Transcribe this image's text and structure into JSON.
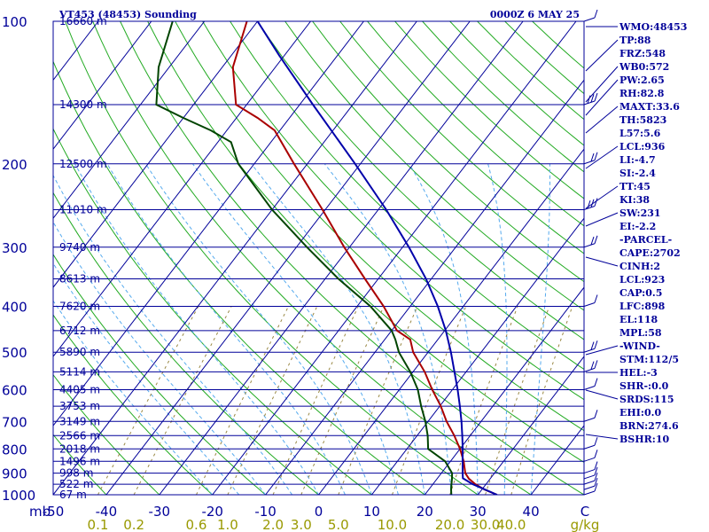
{
  "header": {
    "station": "VT453 (48453) Sounding",
    "time": "0000Z  6 MAY 25"
  },
  "colors": {
    "axis": "#000099",
    "isobar": "#000099",
    "isotherm": "#000099",
    "dry_adiabat": "#22aa22",
    "moist_adiabat": "#55aaee",
    "mixing_ratio": "#998844",
    "temperature": "#aa0000",
    "dewpoint": "#004400",
    "parcel": "#0000aa",
    "wind": "#000099",
    "mix_label": "#999900"
  },
  "indices": [
    "WMO:48453",
    "TP:88",
    "FRZ:548",
    "WB0:572",
    "PW:2.65",
    "RH:82.8",
    "MAXT:33.6",
    "TH:5823",
    "L57:5.6",
    "LCL:936",
    "LI:-4.7",
    "SI:-2.4",
    "TT:45",
    "KI:38",
    "SW:231",
    "EI:-2.2",
    "-PARCEL-",
    "CAPE:2702",
    "CINH:2",
    "LCL:923",
    "CAP:0.5",
    "LFC:898",
    "EL:118",
    "MPL:58",
    "-WIND-",
    "STM:112/5",
    "HEL:-3",
    "SHR-:0.0",
    "SRDS:115",
    "EHI:0.0",
    "BRN:274.6",
    "BSHR:10"
  ],
  "x_axis": {
    "unit_mb": "mb",
    "unit_c": "C",
    "temp_ticks": [
      "-50",
      "-40",
      "-30",
      "-20",
      "-10",
      "0",
      "10",
      "20",
      "30",
      "40"
    ],
    "mixing_ratio_unit": "g/kg",
    "mixing_ratio_ticks": [
      "0.1",
      "0.2",
      "0.6",
      "1.0",
      "2.0",
      "3.0",
      "5.0",
      "10.0",
      "20.0",
      "30.0",
      "40.0"
    ]
  },
  "chart_data": {
    "type": "line",
    "title": "VT453 (48453) Sounding",
    "subtitle": "0000Z  6 MAY 25",
    "x_label": "C",
    "y_label": "mb",
    "xlim": [
      -50,
      50
    ],
    "ylim": [
      1000,
      100
    ],
    "y_scale": "log",
    "pressure_ticks": [
      100,
      200,
      300,
      400,
      500,
      600,
      700,
      800,
      900,
      1000
    ],
    "heights": [
      {
        "p": 100,
        "label": "16660 m"
      },
      {
        "p": 150,
        "label": "14300 m"
      },
      {
        "p": 200,
        "label": "12500 m"
      },
      {
        "p": 250,
        "label": "11010 m"
      },
      {
        "p": 300,
        "label": "9740 m"
      },
      {
        "p": 350,
        "label": "8613 m"
      },
      {
        "p": 400,
        "label": "7620 m"
      },
      {
        "p": 450,
        "label": "6712 m"
      },
      {
        "p": 500,
        "label": "5890 m"
      },
      {
        "p": 550,
        "label": "5114 m"
      },
      {
        "p": 600,
        "label": "4405 m"
      },
      {
        "p": 650,
        "label": "3753 m"
      },
      {
        "p": 700,
        "label": "3149 m"
      },
      {
        "p": 750,
        "label": "2566 m"
      },
      {
        "p": 800,
        "label": "2018 m"
      },
      {
        "p": 850,
        "label": "1496 m"
      },
      {
        "p": 900,
        "label": "998 m"
      },
      {
        "p": 950,
        "label": "522 m"
      },
      {
        "p": 1000,
        "label": "67 m"
      }
    ],
    "mixing_ratio_values": [
      0.1,
      0.2,
      0.6,
      1.0,
      2.0,
      3.0,
      5.0,
      10.0,
      20.0,
      30.0,
      40.0
    ],
    "series": [
      {
        "name": "temperature",
        "points": [
          [
            1000,
            33.6
          ],
          [
            975,
            30.5
          ],
          [
            950,
            28.0
          ],
          [
            925,
            26.0
          ],
          [
            900,
            24.5
          ],
          [
            850,
            22.5
          ],
          [
            800,
            20.0
          ],
          [
            750,
            17.0
          ],
          [
            700,
            13.5
          ],
          [
            650,
            10.2
          ],
          [
            600,
            6.2
          ],
          [
            550,
            2.2
          ],
          [
            500,
            -2.8
          ],
          [
            470,
            -5.2
          ],
          [
            450,
            -9.0
          ],
          [
            400,
            -15.0
          ],
          [
            350,
            -22.5
          ],
          [
            300,
            -31.0
          ],
          [
            250,
            -40.5
          ],
          [
            200,
            -52.5
          ],
          [
            170,
            -61.0
          ],
          [
            160,
            -66.0
          ],
          [
            150,
            -72.0
          ],
          [
            125,
            -78.0
          ],
          [
            100,
            -82.0
          ]
        ]
      },
      {
        "name": "dewpoint",
        "points": [
          [
            1000,
            25.0
          ],
          [
            975,
            24.2
          ],
          [
            950,
            23.5
          ],
          [
            925,
            22.8
          ],
          [
            900,
            22.0
          ],
          [
            850,
            19.0
          ],
          [
            800,
            14.0
          ],
          [
            750,
            12.0
          ],
          [
            700,
            9.5
          ],
          [
            650,
            6.5
          ],
          [
            600,
            3.5
          ],
          [
            550,
            -0.5
          ],
          [
            500,
            -5.5
          ],
          [
            470,
            -8.0
          ],
          [
            450,
            -10.0
          ],
          [
            400,
            -17.5
          ],
          [
            350,
            -27.5
          ],
          [
            300,
            -38.0
          ],
          [
            250,
            -50.0
          ],
          [
            200,
            -63.0
          ],
          [
            180,
            -67.5
          ],
          [
            170,
            -73.0
          ],
          [
            160,
            -80.0
          ],
          [
            150,
            -87.0
          ],
          [
            125,
            -92.0
          ],
          [
            100,
            -96.0
          ]
        ]
      },
      {
        "name": "parcel",
        "points": [
          [
            1000,
            33.6
          ],
          [
            950,
            27.5
          ],
          [
            923,
            24.8
          ],
          [
            900,
            24.0
          ],
          [
            850,
            22.3
          ],
          [
            800,
            20.5
          ],
          [
            750,
            18.5
          ],
          [
            700,
            16.3
          ],
          [
            650,
            13.8
          ],
          [
            600,
            11.0
          ],
          [
            550,
            7.8
          ],
          [
            500,
            4.3
          ],
          [
            450,
            0.2
          ],
          [
            400,
            -4.8
          ],
          [
            350,
            -11.0
          ],
          [
            300,
            -18.8
          ],
          [
            250,
            -28.5
          ],
          [
            200,
            -41.0
          ],
          [
            150,
            -57.5
          ],
          [
            118,
            -71.0
          ],
          [
            100,
            -80.0
          ]
        ]
      }
    ],
    "wind_speeds_kt": [
      {
        "p": 1000,
        "kt": 5
      },
      {
        "p": 975,
        "kt": 5
      },
      {
        "p": 950,
        "kt": 5
      },
      {
        "p": 925,
        "kt": 5
      },
      {
        "p": 900,
        "kt": 5
      },
      {
        "p": 850,
        "kt": 5
      },
      {
        "p": 800,
        "kt": 5
      },
      {
        "p": 700,
        "kt": 5
      },
      {
        "p": 600,
        "kt": 5
      },
      {
        "p": 550,
        "kt": 10
      },
      {
        "p": 500,
        "kt": 10
      },
      {
        "p": 400,
        "kt": 5
      },
      {
        "p": 300,
        "kt": 10
      },
      {
        "p": 250,
        "kt": 15
      },
      {
        "p": 200,
        "kt": 10
      },
      {
        "p": 150,
        "kt": 15
      },
      {
        "p": 100,
        "kt": 5
      }
    ],
    "grid": true,
    "legend": "none"
  }
}
